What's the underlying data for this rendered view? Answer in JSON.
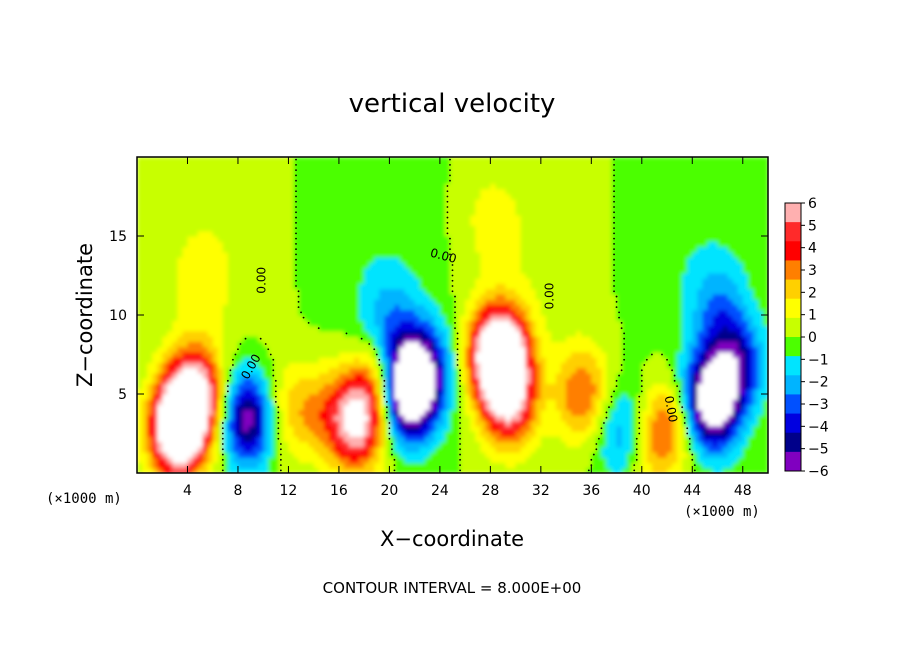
{
  "chart_data": {
    "type": "heatmap",
    "title": "vertical velocity",
    "xlabel": "X−coordinate",
    "ylabel": "Z−coordinate",
    "x_unit": "(×1000 m)",
    "y_unit": "(×1000 m)",
    "xlim": [
      0,
      50
    ],
    "ylim": [
      0,
      20
    ],
    "x_ticks": [
      4,
      8,
      12,
      16,
      20,
      24,
      28,
      32,
      36,
      40,
      44,
      48
    ],
    "y_ticks": [
      5,
      10,
      15
    ],
    "colorbar": {
      "min": -6,
      "max": 6,
      "ticks": [
        "6",
        "5",
        "4",
        "3",
        "2",
        "1",
        "0",
        "−1",
        "−2",
        "−3",
        "−4",
        "−5",
        "−6"
      ],
      "colors": [
        "#ffb0b0",
        "#ff2a2a",
        "#ff0000",
        "#ff7f00",
        "#ffd000",
        "#ffff00",
        "#c8ff00",
        "#4cff00",
        "#00e4ff",
        "#00b4ff",
        "#0050ff",
        "#0000e0",
        "#00008a",
        "#8000c0"
      ]
    },
    "contour_label": "0.00",
    "footer": "CONTOUR INTERVAL = 8.000E+00",
    "features": [
      {
        "x": 3.2,
        "z": 2.8,
        "w": 9.0
      },
      {
        "x": 4.6,
        "z": 5.0,
        "w": 6.5
      },
      {
        "x": 9.0,
        "z": 3.5,
        "w": -7.0
      },
      {
        "x": 10.5,
        "z": 3.8,
        "w": 2.5
      },
      {
        "x": 13.5,
        "z": 4.0,
        "w": 2.0
      },
      {
        "x": 16.5,
        "z": 3.8,
        "w": 2.5
      },
      {
        "x": 17.5,
        "z": 2.8,
        "w": 4.0
      },
      {
        "x": 19.3,
        "z": 5.3,
        "w": 4.0
      },
      {
        "x": 21.3,
        "z": 5.0,
        "w": -8.0
      },
      {
        "x": 22.5,
        "z": 6.5,
        "w": -5.0
      },
      {
        "x": 28.7,
        "z": 7.5,
        "w": 10.0
      },
      {
        "x": 29.5,
        "z": 4.5,
        "w": 5.0
      },
      {
        "x": 35.3,
        "z": 5.0,
        "w": 3.5
      },
      {
        "x": 38.8,
        "z": 2.5,
        "w": -4.0
      },
      {
        "x": 40.0,
        "z": 2.0,
        "w": 3.0
      },
      {
        "x": 42.3,
        "z": 3.0,
        "w": 3.0
      },
      {
        "x": 45.5,
        "z": 4.5,
        "w": -8.0
      },
      {
        "x": 47.5,
        "z": 7.0,
        "w": -4.0
      },
      {
        "x": 5.0,
        "z": 12.0,
        "w": 1.0
      },
      {
        "x": 28.0,
        "z": 16.0,
        "w": 1.0
      },
      {
        "x": 46.0,
        "z": 10.5,
        "w": -2.0
      },
      {
        "x": 20.0,
        "z": 9.5,
        "w": -2.0
      }
    ]
  }
}
